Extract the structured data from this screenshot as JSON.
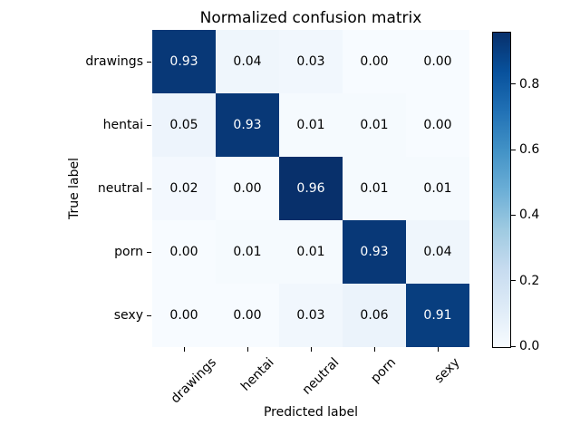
{
  "chart_data": {
    "type": "heatmap",
    "title": "Normalized confusion matrix",
    "xlabel": "Predicted label",
    "ylabel": "True label",
    "x_categories": [
      "drawings",
      "hentai",
      "neutral",
      "porn",
      "sexy"
    ],
    "y_categories": [
      "drawings",
      "hentai",
      "neutral",
      "porn",
      "sexy"
    ],
    "matrix": [
      [
        0.93,
        0.04,
        0.03,
        0.0,
        0.0
      ],
      [
        0.05,
        0.93,
        0.01,
        0.01,
        0.0
      ],
      [
        0.02,
        0.0,
        0.96,
        0.01,
        0.01
      ],
      [
        0.0,
        0.01,
        0.01,
        0.93,
        0.04
      ],
      [
        0.0,
        0.0,
        0.03,
        0.06,
        0.91
      ]
    ],
    "value_decimals": 2,
    "vmin": 0.0,
    "vmax": 0.96,
    "colormap": {
      "name": "Blues",
      "stops": [
        "#f7fbff",
        "#deebf7",
        "#c6dbef",
        "#9ecae1",
        "#6baed6",
        "#4292c6",
        "#2171b5",
        "#08519c",
        "#08306b"
      ]
    },
    "colorbar": {
      "position": "right",
      "tick_values": [
        0.0,
        0.2,
        0.4,
        0.6,
        0.8
      ],
      "tick_decimals": 1
    },
    "cell_text_color_dark_bg": "#ffffff",
    "cell_text_color_light_bg": "#000000",
    "background_color": "#ffffff",
    "spine_color": "#000000",
    "grid": false,
    "x_tick_rotation_deg": 45
  }
}
